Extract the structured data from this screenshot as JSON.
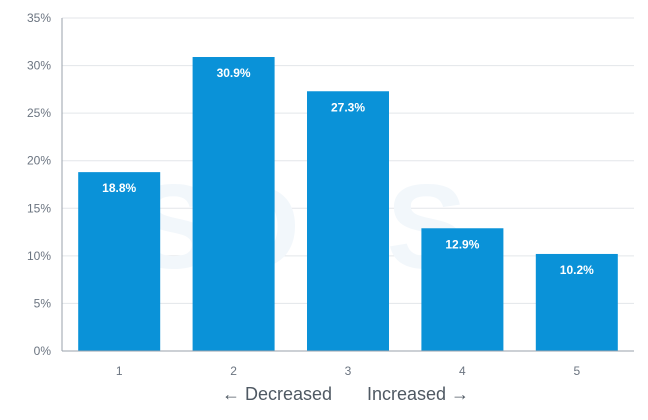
{
  "chart_data": {
    "type": "bar",
    "categories": [
      "1",
      "2",
      "3",
      "4",
      "5"
    ],
    "values": [
      18.8,
      30.9,
      27.3,
      12.9,
      10.2
    ],
    "data_labels": [
      "18.8%",
      "30.9%",
      "27.3%",
      "12.9%",
      "10.2%"
    ],
    "y_ticks": [
      "0%",
      "5%",
      "10%",
      "15%",
      "20%",
      "25%",
      "30%",
      "35%"
    ],
    "ylim": [
      0,
      35
    ],
    "x_axis_label_left": "← Decreased",
    "x_axis_label_right": "Increased →",
    "grid": true,
    "legend": "none",
    "watermark": "SDBS",
    "colors": {
      "bar": "#0a92d8",
      "label": "#ffffff",
      "grid": "#e3e6ea",
      "axis": "#9aa2ab",
      "tick": "#6b7480",
      "watermark": "#f2f7fb"
    }
  }
}
